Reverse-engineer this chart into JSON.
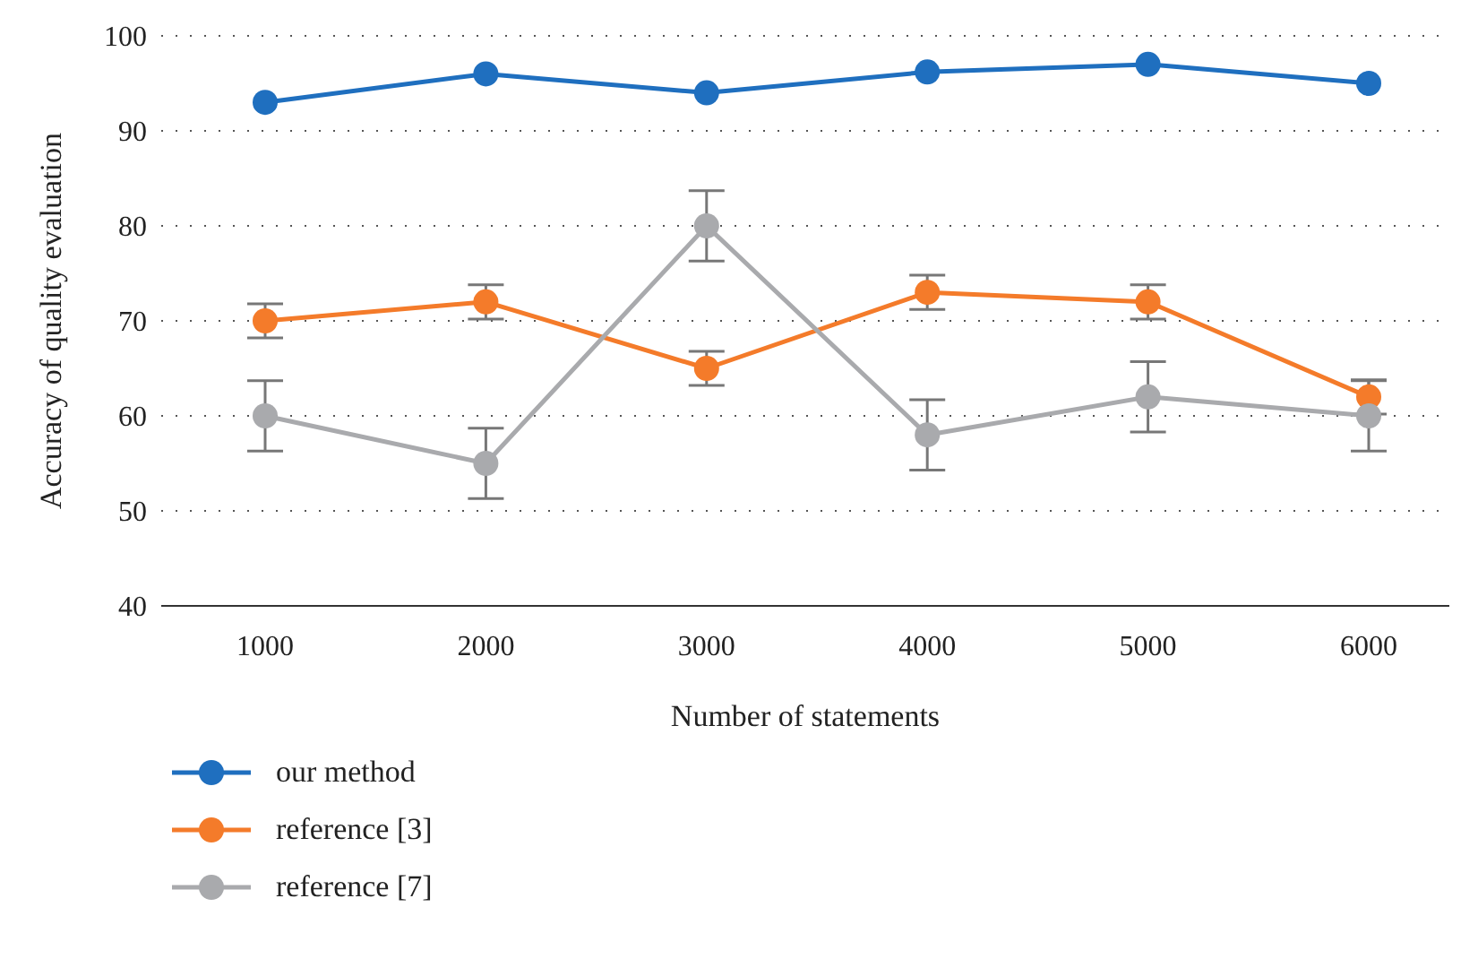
{
  "chart_data": {
    "type": "line",
    "xlabel": "Number of statements",
    "ylabel": "Accuracy of quality evaluation",
    "categories": [
      "1000",
      "2000",
      "3000",
      "4000",
      "5000",
      "6000"
    ],
    "series": [
      {
        "name": "our method",
        "color": "#1f6fbf",
        "values": [
          93,
          96,
          94,
          96.2,
          97,
          95
        ]
      },
      {
        "name": "reference [3]",
        "color": "#f47b2a",
        "values": [
          70,
          72,
          65,
          73,
          72,
          62
        ],
        "errors": [
          1.8,
          1.8,
          1.8,
          1.8,
          1.8,
          1.8
        ]
      },
      {
        "name": "reference [7]",
        "color": "#a9aaad",
        "values": [
          60,
          55,
          80,
          58,
          62,
          60
        ],
        "errors": [
          3.7,
          3.7,
          3.7,
          3.7,
          3.7,
          3.7
        ]
      }
    ],
    "ylim": [
      40,
      100
    ],
    "yticks": [
      40,
      50,
      60,
      70,
      80,
      90,
      100
    ],
    "grid": "y",
    "legend": "bottom left",
    "marker": "circle",
    "line_style": "solid"
  }
}
